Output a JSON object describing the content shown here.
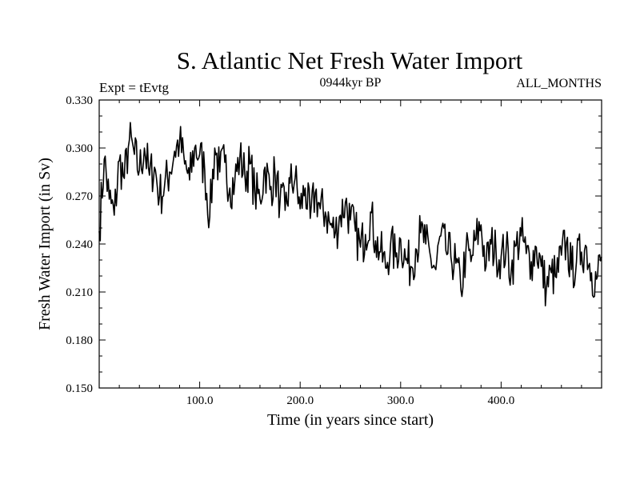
{
  "chart_data": {
    "type": "line",
    "title": "S. Atlantic Net Fresh Water Import",
    "subtitle_left": "Expt = tEvtg",
    "subtitle_center": "0944kyr BP",
    "subtitle_right": "ALL_MONTHS",
    "xlabel": "Time (in years since start)",
    "ylabel": "Fresh Water Import (in Sv)",
    "xlim": [
      0,
      500
    ],
    "ylim": [
      0.15,
      0.33
    ],
    "x_ticks": [
      100,
      200,
      300,
      400
    ],
    "x_tick_labels": [
      "100.0",
      "200.0",
      "300.0",
      "400.0"
    ],
    "y_ticks": [
      0.15,
      0.18,
      0.21,
      0.24,
      0.27,
      0.3,
      0.33
    ],
    "y_tick_labels": [
      "0.150",
      "0.180",
      "0.210",
      "0.240",
      "0.270",
      "0.300",
      "0.330"
    ],
    "series": [
      {
        "name": "S. Atlantic Net Fresh Water Import",
        "x_start": 0,
        "x_step": 5,
        "values": [
          0.248,
          0.293,
          0.268,
          0.258,
          0.292,
          0.281,
          0.305,
          0.296,
          0.286,
          0.3,
          0.283,
          0.288,
          0.27,
          0.276,
          0.285,
          0.298,
          0.304,
          0.29,
          0.28,
          0.3,
          0.296,
          0.286,
          0.257,
          0.3,
          0.285,
          0.291,
          0.275,
          0.28,
          0.294,
          0.283,
          0.29,
          0.272,
          0.268,
          0.288,
          0.274,
          0.284,
          0.267,
          0.261,
          0.278,
          0.281,
          0.262,
          0.275,
          0.256,
          0.272,
          0.262,
          0.26,
          0.252,
          0.247,
          0.258,
          0.266,
          0.255,
          0.248,
          0.238,
          0.246,
          0.26,
          0.242,
          0.235,
          0.225,
          0.24,
          0.232,
          0.243,
          0.23,
          0.226,
          0.237,
          0.247,
          0.24,
          0.231,
          0.224,
          0.245,
          0.236,
          0.232,
          0.228,
          0.211,
          0.236,
          0.229,
          0.243,
          0.252,
          0.226,
          0.24,
          0.235,
          0.232,
          0.237,
          0.223,
          0.239,
          0.245,
          0.234,
          0.229,
          0.238,
          0.226,
          0.212,
          0.222,
          0.219,
          0.233,
          0.241,
          0.224,
          0.229,
          0.235,
          0.238,
          0.222,
          0.218,
          0.232
        ]
      }
    ],
    "line_color": "#000000"
  }
}
